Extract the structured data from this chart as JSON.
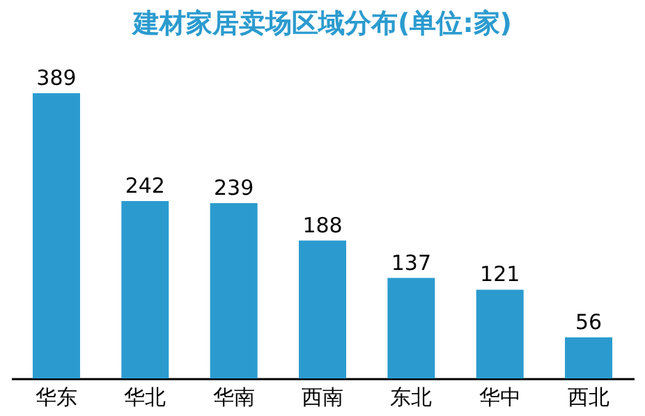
{
  "chart_data": {
    "type": "bar",
    "title": "建材家居卖场区域分布(单位:家)",
    "categories": [
      "华东",
      "华北",
      "华南",
      "西南",
      "东北",
      "华中",
      "西北"
    ],
    "values": [
      389,
      242,
      239,
      188,
      137,
      121,
      56
    ],
    "color": "#2b9bcf",
    "data_labels": true,
    "grid": false
  }
}
